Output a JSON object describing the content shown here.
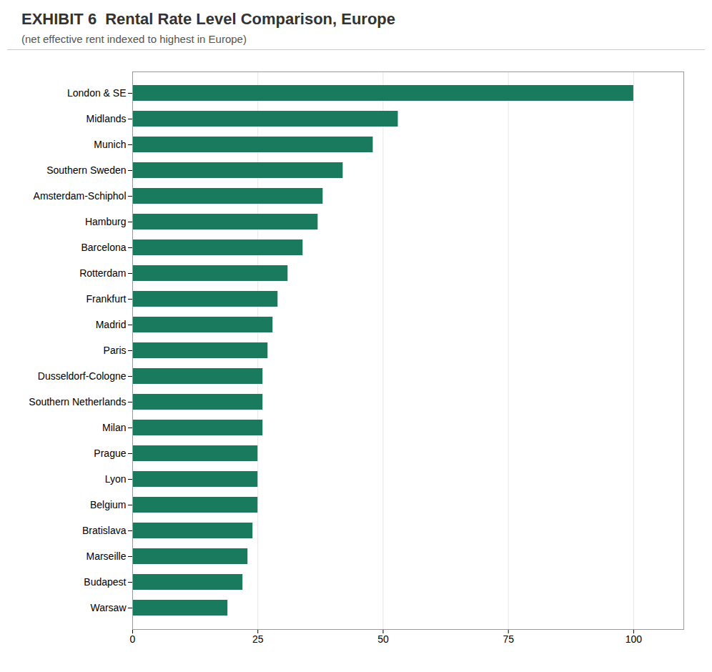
{
  "chart_data": {
    "type": "bar",
    "orientation": "horizontal",
    "title": "Rental Rate Level Comparison, Europe",
    "subtitle": "(net effective rent indexed to highest in Europe)",
    "annotations": [
      "EXHIBIT 6"
    ],
    "categories": [
      "London & SE",
      "Midlands",
      "Munich",
      "Southern Sweden",
      "Amsterdam-Schiphol",
      "Hamburg",
      "Barcelona",
      "Rotterdam",
      "Frankfurt",
      "Madrid",
      "Paris",
      "Dusseldorf-Cologne",
      "Southern Netherlands",
      "Milan",
      "Prague",
      "Lyon",
      "Belgium",
      "Bratislava",
      "Marseille",
      "Budapest",
      "Warsaw"
    ],
    "values": [
      100,
      53,
      48,
      42,
      38,
      37,
      34,
      31,
      29,
      28,
      27,
      26,
      26,
      26,
      25,
      25,
      25,
      24,
      23,
      22,
      19
    ],
    "color": "#1a7a5e",
    "xlim": [
      0,
      110
    ],
    "xticks": [
      0,
      25,
      50,
      75,
      100
    ],
    "grid": true
  }
}
